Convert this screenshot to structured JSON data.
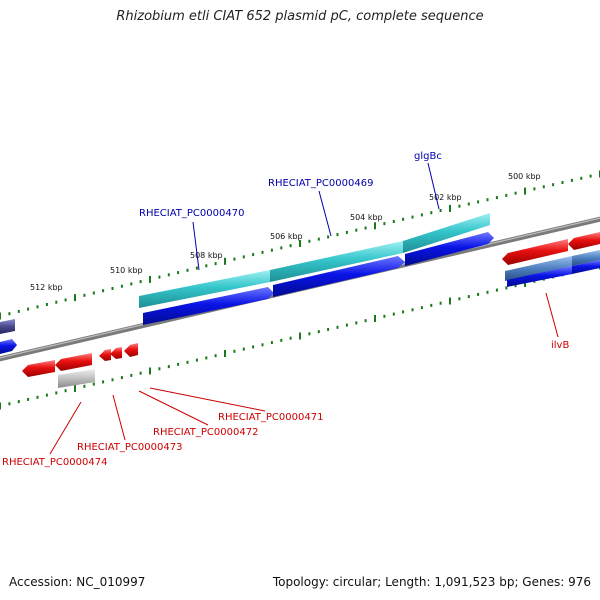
{
  "title": "Rhizobium etli CIAT 652 plasmid pC, complete sequence",
  "footer": {
    "accession": "Accession: NC_010997",
    "summary": "Topology: circular; Length: 1,091,523 bp; Genes: 976"
  },
  "ruler_labels": [
    "500 kbp",
    "502 kbp",
    "504 kbp",
    "506 kbp",
    "508 kbp",
    "510 kbp",
    "512 kbp"
  ],
  "gene_labels_top": [
    "RHECIAT_PC0000470",
    "RHECIAT_PC0000469",
    "glgBc"
  ],
  "gene_labels_bottom": [
    "ilvB",
    "RHECIAT_PC0000471",
    "RHECIAT_PC0000472",
    "RHECIAT_PC0000473",
    "RHECIAT_PC0000474"
  ],
  "colors": {
    "forward_label": "#0000aa",
    "reverse_label": "#cc0000",
    "backbone": "#808080",
    "ticks": "#1a7a1a",
    "cyan": "#35c6cc",
    "blue": "#0a14e6",
    "red": "#e81010",
    "grey": "#b8b8b8",
    "steelblue": "#4d7fbf",
    "navy": "#4a4a90"
  }
}
